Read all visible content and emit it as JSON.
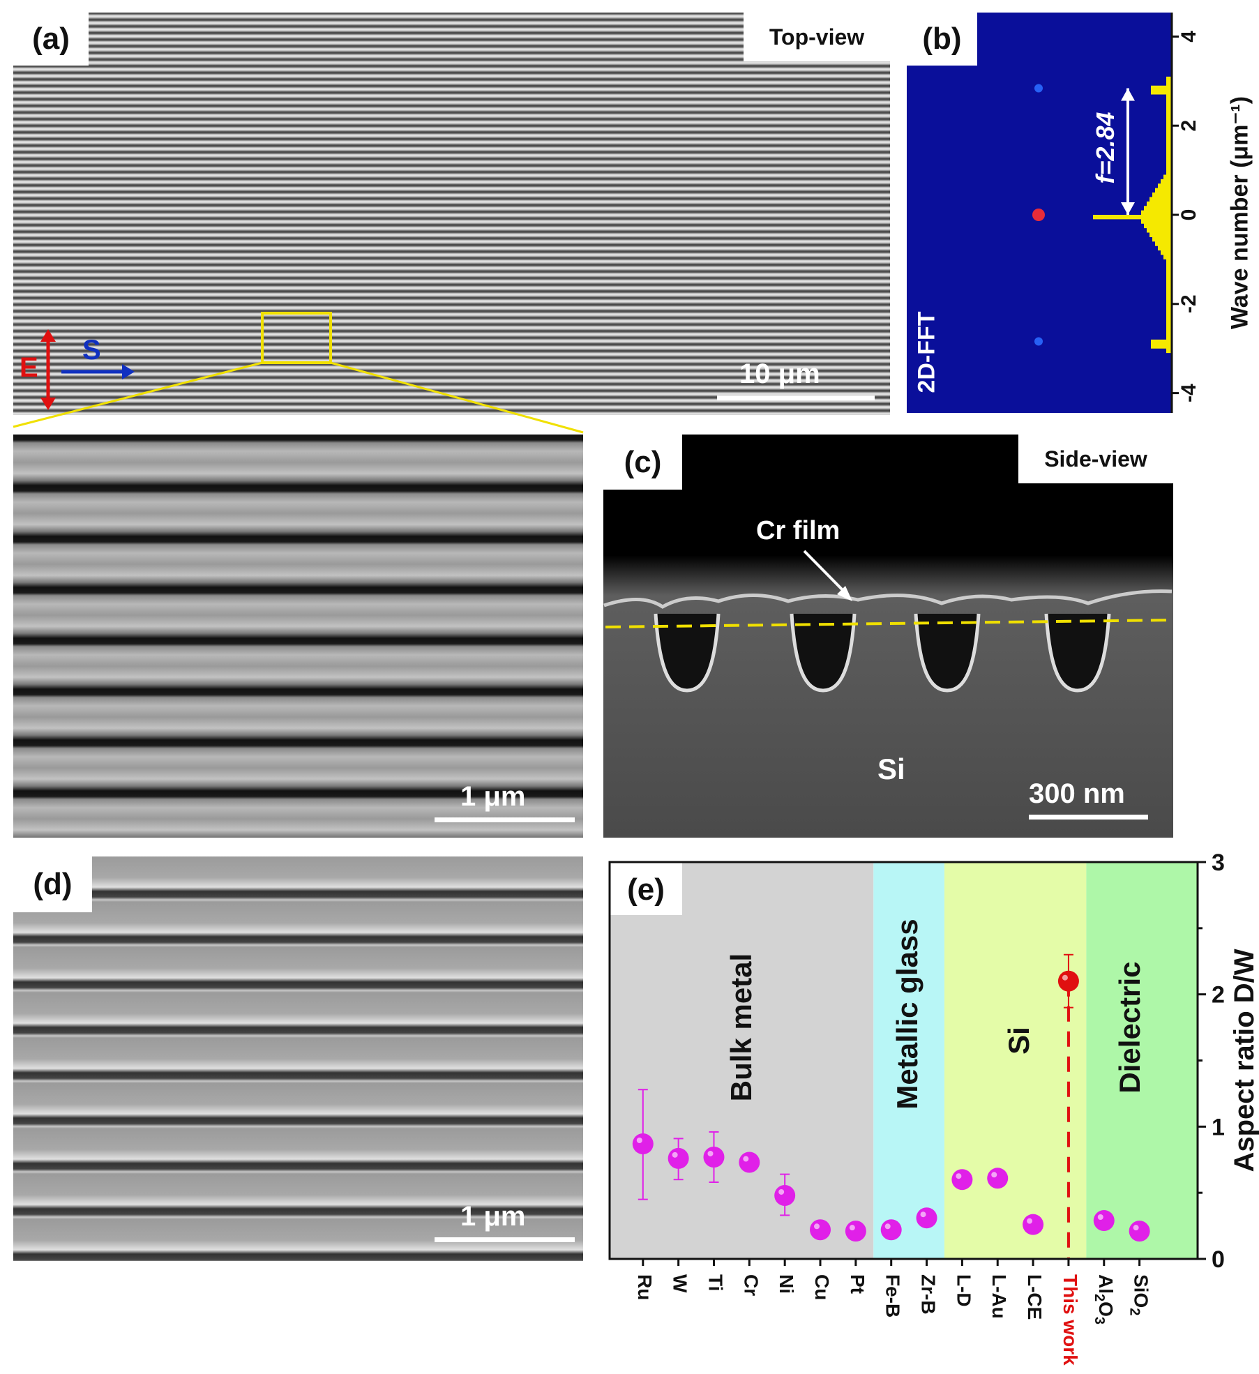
{
  "panel_a": {
    "label": "(a)",
    "view": "Top-view",
    "scale_bar": "10 μm",
    "field_label": "E",
    "scan_label": "S",
    "colors": {
      "field": "#e01010",
      "scan": "#1030c0",
      "highlight": "#f0e000"
    }
  },
  "panel_b": {
    "label": "(b)",
    "annotation": "f=2.84",
    "method": "2D-FFT",
    "axis_label": "Wave number (μm⁻¹)",
    "ticks": [
      4,
      2,
      0,
      -2,
      -4
    ],
    "ylim": [
      -4.5,
      4.5
    ],
    "peaks": [
      2.84,
      0,
      -2.84
    ]
  },
  "panel_inset": {
    "scale_bar": "1 μm"
  },
  "panel_c": {
    "label": "(c)",
    "view": "Side-view",
    "film_label": "Cr film",
    "substrate_label": "Si",
    "scale_bar": "300 nm"
  },
  "panel_d": {
    "label": "(d)",
    "scale_bar": "1 μm"
  },
  "chart_data": {
    "type": "scatter",
    "panel_label": "(e)",
    "ylabel": "Aspect ratio D/W",
    "ylim": [
      0,
      3
    ],
    "yticks": [
      0,
      1,
      2,
      3
    ],
    "y_axis_side": "right",
    "categories": [
      "Ru",
      "W",
      "Ti",
      "Cr",
      "Ni",
      "Cu",
      "Pt",
      "Fe-B",
      "Zr-B",
      "L-D",
      "L-Au",
      "L-CE",
      "This work",
      "Al2O3",
      "SiO2"
    ],
    "values": [
      0.87,
      0.76,
      0.77,
      0.73,
      0.48,
      0.22,
      0.21,
      0.22,
      0.31,
      0.6,
      0.61,
      0.26,
      2.1,
      0.29,
      0.21
    ],
    "error_low": [
      0.45,
      0.6,
      0.58,
      null,
      0.33,
      null,
      null,
      null,
      null,
      null,
      null,
      null,
      1.9,
      null,
      null
    ],
    "error_high": [
      1.28,
      0.91,
      0.96,
      null,
      0.64,
      null,
      null,
      null,
      null,
      null,
      null,
      null,
      2.3,
      null,
      null
    ],
    "highlight": "This work",
    "regions": [
      {
        "name": "Bulk metal",
        "from": "Ru",
        "to": "Pt",
        "color": "#d3d3d3"
      },
      {
        "name": "Metallic glass",
        "from": "Fe-B",
        "to": "Zr-B",
        "color": "#b8f6f6"
      },
      {
        "name": "Si",
        "from": "L-D",
        "to": "This work",
        "color": "#e4fca8"
      },
      {
        "name": "Dielectric",
        "from": "Al2O3",
        "to": "SiO2",
        "color": "#aef7a8"
      }
    ],
    "colors": {
      "points": "#e020e8",
      "highlight": "#e01010"
    }
  }
}
